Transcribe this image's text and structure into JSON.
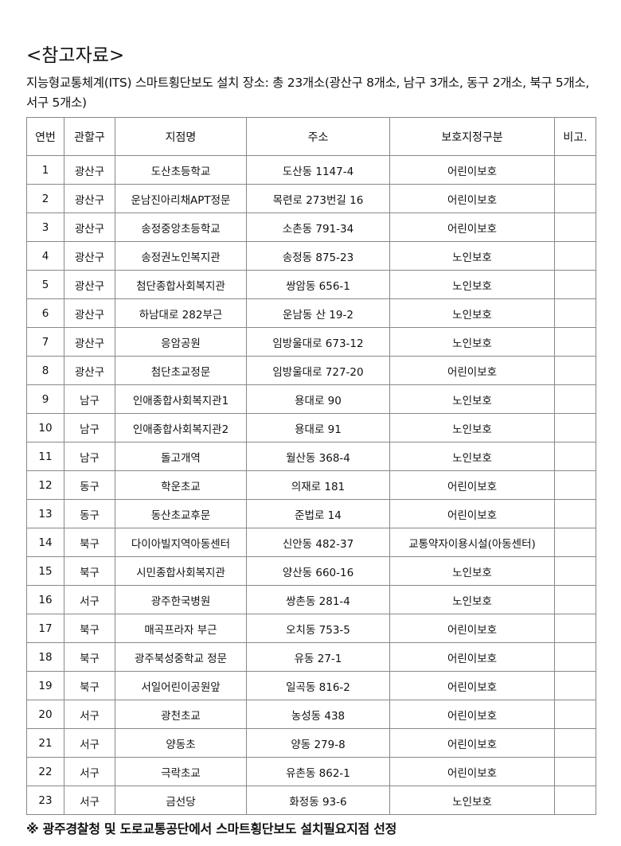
{
  "title": "<참고자료>",
  "intro": "지능형교통체계(ITS) 스마트횡단보도 설치 장소: 총 23개소(광산구 8개소, 남구 3개소, 동구 2개소, 북구 5개소, 서구 5개소)",
  "table": {
    "headers": [
      "연번",
      "관할구",
      "지점명",
      "주소",
      "보호지정구분",
      "비고."
    ],
    "rows": [
      [
        "1",
        "광산구",
        "도산초등학교",
        "도산동 1147-4",
        "어린이보호",
        ""
      ],
      [
        "2",
        "광산구",
        "운남진아리채APT정문",
        "목련로 273번길 16",
        "어린이보호",
        ""
      ],
      [
        "3",
        "광산구",
        "송정중앙초등학교",
        "소촌동 791-34",
        "어린이보호",
        ""
      ],
      [
        "4",
        "광산구",
        "송정권노인복지관",
        "송정동 875-23",
        "노인보호",
        ""
      ],
      [
        "5",
        "광산구",
        "첨단종합사회복지관",
        "쌍암동 656-1",
        "노인보호",
        ""
      ],
      [
        "6",
        "광산구",
        "하남대로 282부근",
        "운남동 산 19-2",
        "노인보호",
        ""
      ],
      [
        "7",
        "광산구",
        "응암공원",
        "임방울대로 673-12",
        "노인보호",
        ""
      ],
      [
        "8",
        "광산구",
        "첨단초교정문",
        "임방울대로 727-20",
        "어린이보호",
        ""
      ],
      [
        "9",
        "남구",
        "인애종합사회복지관1",
        "용대로 90",
        "노인보호",
        ""
      ],
      [
        "10",
        "남구",
        "인애종합사회복지관2",
        "용대로 91",
        "노인보호",
        ""
      ],
      [
        "11",
        "남구",
        "돌고개역",
        "월산동 368-4",
        "노인보호",
        ""
      ],
      [
        "12",
        "동구",
        "학운초교",
        "의재로 181",
        "어린이보호",
        ""
      ],
      [
        "13",
        "동구",
        "동산초교후문",
        "준법로 14",
        "어린이보호",
        ""
      ],
      [
        "14",
        "북구",
        "다이아빌지역아동센터",
        "신안동 482-37",
        "교통약자이용시설(아동센터)",
        ""
      ],
      [
        "15",
        "북구",
        "시민종합사회복지관",
        "양산동 660-16",
        "노인보호",
        ""
      ],
      [
        "16",
        "서구",
        "광주한국병원",
        "쌍촌동 281-4",
        "노인보호",
        ""
      ],
      [
        "17",
        "북구",
        "매곡프라자 부근",
        "오치동 753-5",
        "어린이보호",
        ""
      ],
      [
        "18",
        "북구",
        "광주북성중학교 정문",
        "유동 27-1",
        "어린이보호",
        ""
      ],
      [
        "19",
        "북구",
        "서일어린이공원앞",
        "일곡동 816-2",
        "어린이보호",
        ""
      ],
      [
        "20",
        "서구",
        "광천초교",
        "농성동 438",
        "어린이보호",
        ""
      ],
      [
        "21",
        "서구",
        "양동초",
        "양동 279-8",
        "어린이보호",
        ""
      ],
      [
        "22",
        "서구",
        "극락초교",
        "유촌동 862-1",
        "어린이보호",
        ""
      ],
      [
        "23",
        "서구",
        "금선당",
        "화정동 93-6",
        "노인보호",
        ""
      ]
    ]
  },
  "footer": "※ 광주경찰청 및 도로교통공단에서 스마트횡단보도 설치필요지점 선정"
}
